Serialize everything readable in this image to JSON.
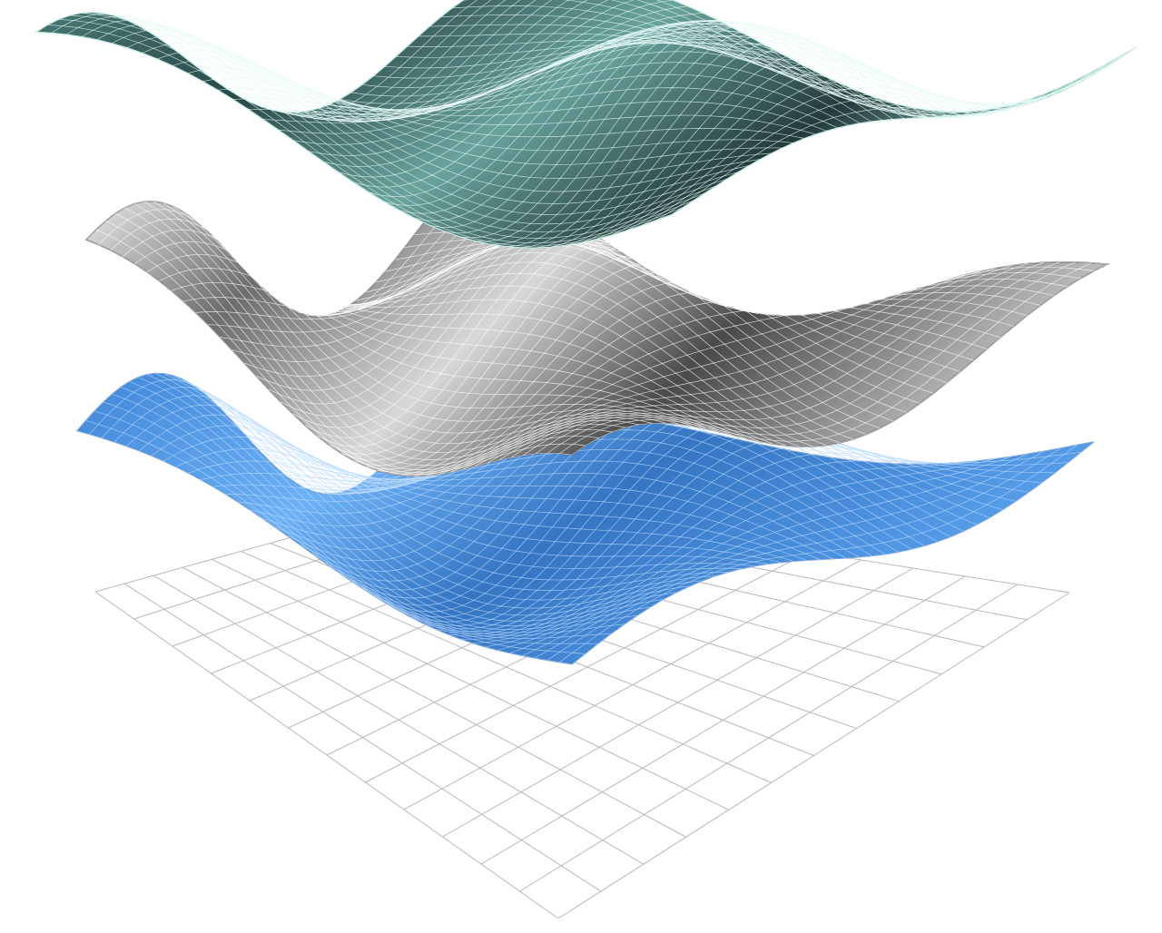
{
  "colors": {
    "background": "#ffffff",
    "floor_grid": "#b8b8b8",
    "top_surface": {
      "dark": "#1e3434",
      "mid": "#3f6e6b",
      "light": "#9fd6cf",
      "mesh": "#e8fbf8"
    },
    "middle_surface": {
      "dark": "#3a3a3a",
      "mid": "#8c8c8c",
      "light": "#f2f2f2",
      "mesh": "#ffffff"
    },
    "bottom_surface": {
      "dark": "#2f6fb8",
      "mid": "#4a94e2",
      "light": "#7cbaf7",
      "mesh": "#bcdcff"
    }
  },
  "layers": [
    {
      "id": "top",
      "style": "teal-wireframe"
    },
    {
      "id": "middle",
      "style": "grey-wireframe"
    },
    {
      "id": "bottom",
      "style": "blue-wireframe"
    }
  ]
}
